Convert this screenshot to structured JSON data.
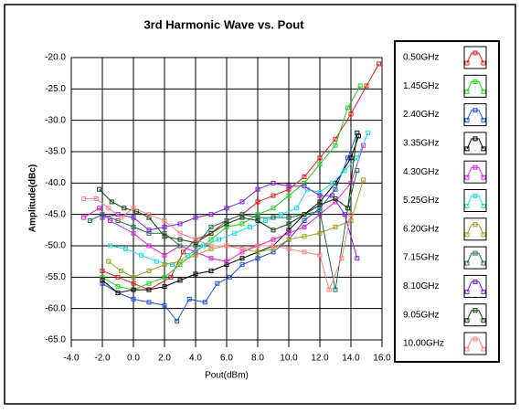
{
  "chart_data": {
    "type": "line",
    "title": "3rd Harmonic Wave vs. Pout",
    "x_label": "Pout(dBm)",
    "y_label": "Amplitude(dBc)",
    "xlim": [
      -4,
      16
    ],
    "ylim": [
      -65,
      -20
    ],
    "xticks": [
      {
        "value": -4,
        "label": "-4.0"
      },
      {
        "value": -2,
        "label": "-2.0"
      },
      {
        "value": 0,
        "label": "0.0"
      },
      {
        "value": 2,
        "label": "2.0"
      },
      {
        "value": 4,
        "label": "4.0"
      },
      {
        "value": 6,
        "label": "6.0"
      },
      {
        "value": 8,
        "label": "8.0"
      },
      {
        "value": 10,
        "label": "10.0"
      },
      {
        "value": 12,
        "label": "12.0"
      },
      {
        "value": 14,
        "label": "14.0"
      },
      {
        "value": 16,
        "label": "16.0"
      }
    ],
    "yticks": [
      {
        "value": -20,
        "label": "-20.0"
      },
      {
        "value": -25,
        "label": "-25.0"
      },
      {
        "value": -30,
        "label": "-30.0"
      },
      {
        "value": -35,
        "label": "-35.0"
      },
      {
        "value": -40,
        "label": "-40.0"
      },
      {
        "value": -45,
        "label": "-45.0"
      },
      {
        "value": -50,
        "label": "-50.0"
      },
      {
        "value": -55,
        "label": "-55.0"
      },
      {
        "value": -60,
        "label": "-60.0"
      },
      {
        "value": -65,
        "label": "-65.0"
      }
    ],
    "grid": true,
    "legend": "right",
    "series": [
      {
        "name": "0.50GHz",
        "color": "#e02020",
        "x": [
          -2,
          -1,
          0,
          1,
          2.4,
          3.2,
          4,
          5,
          6,
          7,
          8,
          9,
          10,
          11,
          12,
          13,
          14,
          15,
          15.8
        ],
        "values": [
          -54,
          -55,
          -56,
          -57,
          -55,
          -51,
          -49,
          -48,
          -46,
          -45,
          -43,
          -42,
          -41,
          -39,
          -36,
          -33,
          -29,
          -24.5,
          -21
        ]
      },
      {
        "name": "1.45GHz",
        "color": "#20d020",
        "x": [
          -2,
          -1,
          0,
          1,
          2,
          3,
          4,
          5,
          6,
          7,
          8,
          9,
          10,
          11,
          12,
          13,
          13.8,
          14.6
        ],
        "values": [
          -55,
          -56.5,
          -57,
          -56,
          -55,
          -53,
          -51,
          -49,
          -47,
          -46.5,
          -45,
          -44,
          -42,
          -40,
          -37,
          -34,
          -28,
          -24.5
        ]
      },
      {
        "name": "2.40GHz",
        "color": "#2050e0",
        "x": [
          -2,
          -1,
          0,
          1,
          2,
          2.8,
          3.6,
          4.6,
          5.4,
          6.2,
          7,
          8,
          9,
          10,
          11,
          12,
          13,
          13.8,
          14.4
        ],
        "values": [
          -56,
          -57.5,
          -58.5,
          -59,
          -59.5,
          -62,
          -58.5,
          -59,
          -56,
          -55,
          -53,
          -52,
          -51,
          -49,
          -46,
          -44,
          -41,
          -36,
          -32
        ]
      },
      {
        "name": "3.35GHz",
        "color": "#000000",
        "x": [
          -2,
          -1,
          0,
          1,
          2,
          3,
          4,
          5,
          6,
          7,
          8,
          9,
          10,
          11,
          12,
          13,
          14,
          14.5
        ],
        "values": [
          -55.5,
          -57.5,
          -57,
          -57,
          -56.5,
          -55.5,
          -54.5,
          -54,
          -53,
          -52,
          -51,
          -50,
          -47.5,
          -45,
          -43,
          -40,
          -36,
          -32.5
        ]
      },
      {
        "name": "4.30GHz",
        "color": "#e020e0",
        "x": [
          -3.2,
          -2.2,
          -1.5,
          0,
          1,
          2,
          3,
          4,
          5,
          6,
          7,
          8,
          9,
          10,
          11,
          12,
          13,
          14,
          14.8
        ],
        "values": [
          -45.5,
          -44,
          -46,
          -48,
          -50,
          -51.5,
          -50,
          -51,
          -52,
          -52.5,
          -51,
          -50,
          -49,
          -48,
          -47,
          -45,
          -43,
          -40,
          -34
        ]
      },
      {
        "name": "5.25GHz",
        "color": "#20e0e0",
        "x": [
          -1.5,
          -0.5,
          0.5,
          1.5,
          2.5,
          3.5,
          4.5,
          5.5,
          6.5,
          7.5,
          8.5,
          9.5,
          10.5,
          11.2,
          12,
          12.8,
          13.6,
          14.4,
          15.1
        ],
        "values": [
          -50,
          -50.5,
          -51.5,
          -52.5,
          -53,
          -51.5,
          -50,
          -49,
          -48,
          -47,
          -46,
          -45,
          -44,
          -41,
          -41.5,
          -40,
          -38,
          -36,
          -32
        ]
      },
      {
        "name": "6.20GHz",
        "color": "#a0a020",
        "x": [
          -1.6,
          -0.8,
          0,
          1,
          2,
          3,
          4,
          5,
          6,
          7,
          8,
          9,
          10,
          11,
          12,
          13,
          14,
          14.8
        ],
        "values": [
          -52.5,
          -54,
          -55,
          -54,
          -53,
          -52.5,
          -51.5,
          -50.5,
          -50,
          -50.5,
          -51,
          -50.5,
          -49,
          -48.5,
          -48,
          -47,
          -46,
          -39.5
        ]
      },
      {
        "name": "7.15GHz",
        "color": "#207050",
        "x": [
          -2.8,
          -2,
          -1,
          0,
          1,
          2,
          3,
          4,
          5,
          6,
          7,
          8,
          9,
          10,
          11,
          12,
          13,
          13.8,
          14.4
        ],
        "values": [
          -46,
          -45,
          -46,
          -47,
          -48,
          -48,
          -50,
          -50,
          -47,
          -46,
          -45,
          -45.5,
          -45.5,
          -45.5,
          -45,
          -44.5,
          -57,
          -44,
          -38
        ]
      },
      {
        "name": "8.10GHz",
        "color": "#8020e0",
        "x": [
          -2,
          -1,
          0,
          1,
          2,
          3,
          4,
          5,
          6,
          7,
          8,
          9,
          10,
          11,
          12,
          12.8,
          13.6,
          14.4
        ],
        "values": [
          -45.5,
          -45,
          -45.5,
          -47.5,
          -47,
          -46.5,
          -45.5,
          -45,
          -44,
          -43,
          -41,
          -40,
          -40.5,
          -40.5,
          -42,
          -42,
          -45,
          -52
        ]
      },
      {
        "name": "9.05GHz",
        "color": "#104010",
        "x": [
          -2.2,
          -1.4,
          -0.6,
          0.2,
          1,
          2,
          3,
          4,
          5,
          6,
          7,
          8,
          9,
          10,
          11,
          12,
          13,
          13.8,
          14.4
        ],
        "values": [
          -41,
          -43,
          -44,
          -44.5,
          -45.5,
          -48.5,
          -49,
          -49.5,
          -48,
          -46.5,
          -45.5,
          -46,
          -47.5,
          -46.5,
          -45,
          -43.5,
          -42.5,
          -44,
          -32
        ]
      },
      {
        "name": "10.00GHz",
        "color": "#ff8080",
        "x": [
          -3.2,
          -2.4,
          -1.6,
          -0.8,
          0,
          1,
          2,
          3,
          4,
          5,
          6,
          7,
          8,
          9,
          10,
          11,
          12,
          12.6,
          13.4,
          14
        ],
        "values": [
          -42.5,
          -42.5,
          -44,
          -45.5,
          -44,
          -45,
          -46,
          -48,
          -49,
          -50,
          -50,
          -50.5,
          -50,
          -50,
          -50.5,
          -51,
          -51.5,
          -57,
          -52,
          -45
        ]
      }
    ]
  }
}
